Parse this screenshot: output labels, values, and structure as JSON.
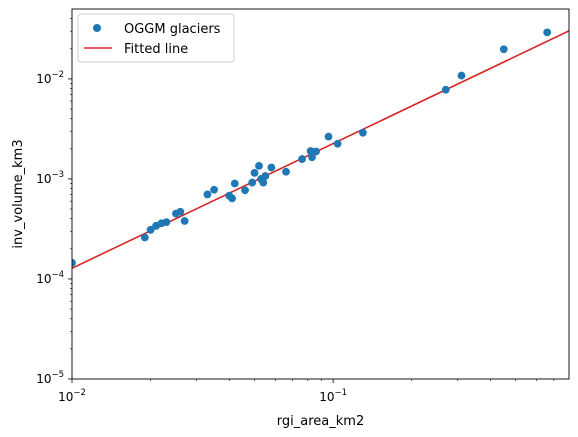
{
  "chart_data": {
    "type": "scatter",
    "xlabel": "rgi_area_km2",
    "ylabel": "inv_volume_km3",
    "xscale": "log",
    "yscale": "log",
    "xlim": [
      0.01,
      0.8
    ],
    "ylim": [
      1e-05,
      0.05
    ],
    "grid": false,
    "legend_position": "top-left",
    "x_major_ticks": [
      {
        "value": 0.01,
        "base": "10",
        "exp": "−2"
      },
      {
        "value": 0.1,
        "base": "10",
        "exp": "−1"
      }
    ],
    "y_major_ticks": [
      {
        "value": 1e-05,
        "base": "10",
        "exp": "−5"
      },
      {
        "value": 0.0001,
        "base": "10",
        "exp": "−4"
      },
      {
        "value": 0.001,
        "base": "10",
        "exp": "−3"
      },
      {
        "value": 0.01,
        "base": "10",
        "exp": "−2"
      }
    ],
    "series": [
      {
        "name": "OGGM glaciers",
        "kind": "scatter",
        "color": "#1f77b4",
        "points": [
          {
            "x": 0.01,
            "y": 0.000145
          },
          {
            "x": 0.019,
            "y": 0.00026
          },
          {
            "x": 0.02,
            "y": 0.00031
          },
          {
            "x": 0.021,
            "y": 0.00034
          },
          {
            "x": 0.022,
            "y": 0.00036
          },
          {
            "x": 0.023,
            "y": 0.00037
          },
          {
            "x": 0.025,
            "y": 0.00045
          },
          {
            "x": 0.026,
            "y": 0.00047
          },
          {
            "x": 0.027,
            "y": 0.00038
          },
          {
            "x": 0.033,
            "y": 0.0007
          },
          {
            "x": 0.035,
            "y": 0.00078
          },
          {
            "x": 0.04,
            "y": 0.00068
          },
          {
            "x": 0.041,
            "y": 0.00064
          },
          {
            "x": 0.042,
            "y": 0.0009
          },
          {
            "x": 0.046,
            "y": 0.00077
          },
          {
            "x": 0.049,
            "y": 0.00092
          },
          {
            "x": 0.05,
            "y": 0.00115
          },
          {
            "x": 0.052,
            "y": 0.00135
          },
          {
            "x": 0.053,
            "y": 0.001
          },
          {
            "x": 0.054,
            "y": 0.00092
          },
          {
            "x": 0.055,
            "y": 0.00107
          },
          {
            "x": 0.058,
            "y": 0.0013
          },
          {
            "x": 0.066,
            "y": 0.00118
          },
          {
            "x": 0.076,
            "y": 0.00158
          },
          {
            "x": 0.082,
            "y": 0.0019
          },
          {
            "x": 0.083,
            "y": 0.00165
          },
          {
            "x": 0.086,
            "y": 0.00188
          },
          {
            "x": 0.096,
            "y": 0.00265
          },
          {
            "x": 0.104,
            "y": 0.00225
          },
          {
            "x": 0.13,
            "y": 0.0029
          },
          {
            "x": 0.27,
            "y": 0.0078
          },
          {
            "x": 0.31,
            "y": 0.0108
          },
          {
            "x": 0.45,
            "y": 0.0198
          },
          {
            "x": 0.66,
            "y": 0.0292
          }
        ]
      },
      {
        "name": "Fitted line",
        "kind": "line",
        "color": "#d62728",
        "points": [
          {
            "x": 0.01,
            "y": 0.000128
          },
          {
            "x": 0.8,
            "y": 0.0302
          }
        ]
      }
    ]
  }
}
